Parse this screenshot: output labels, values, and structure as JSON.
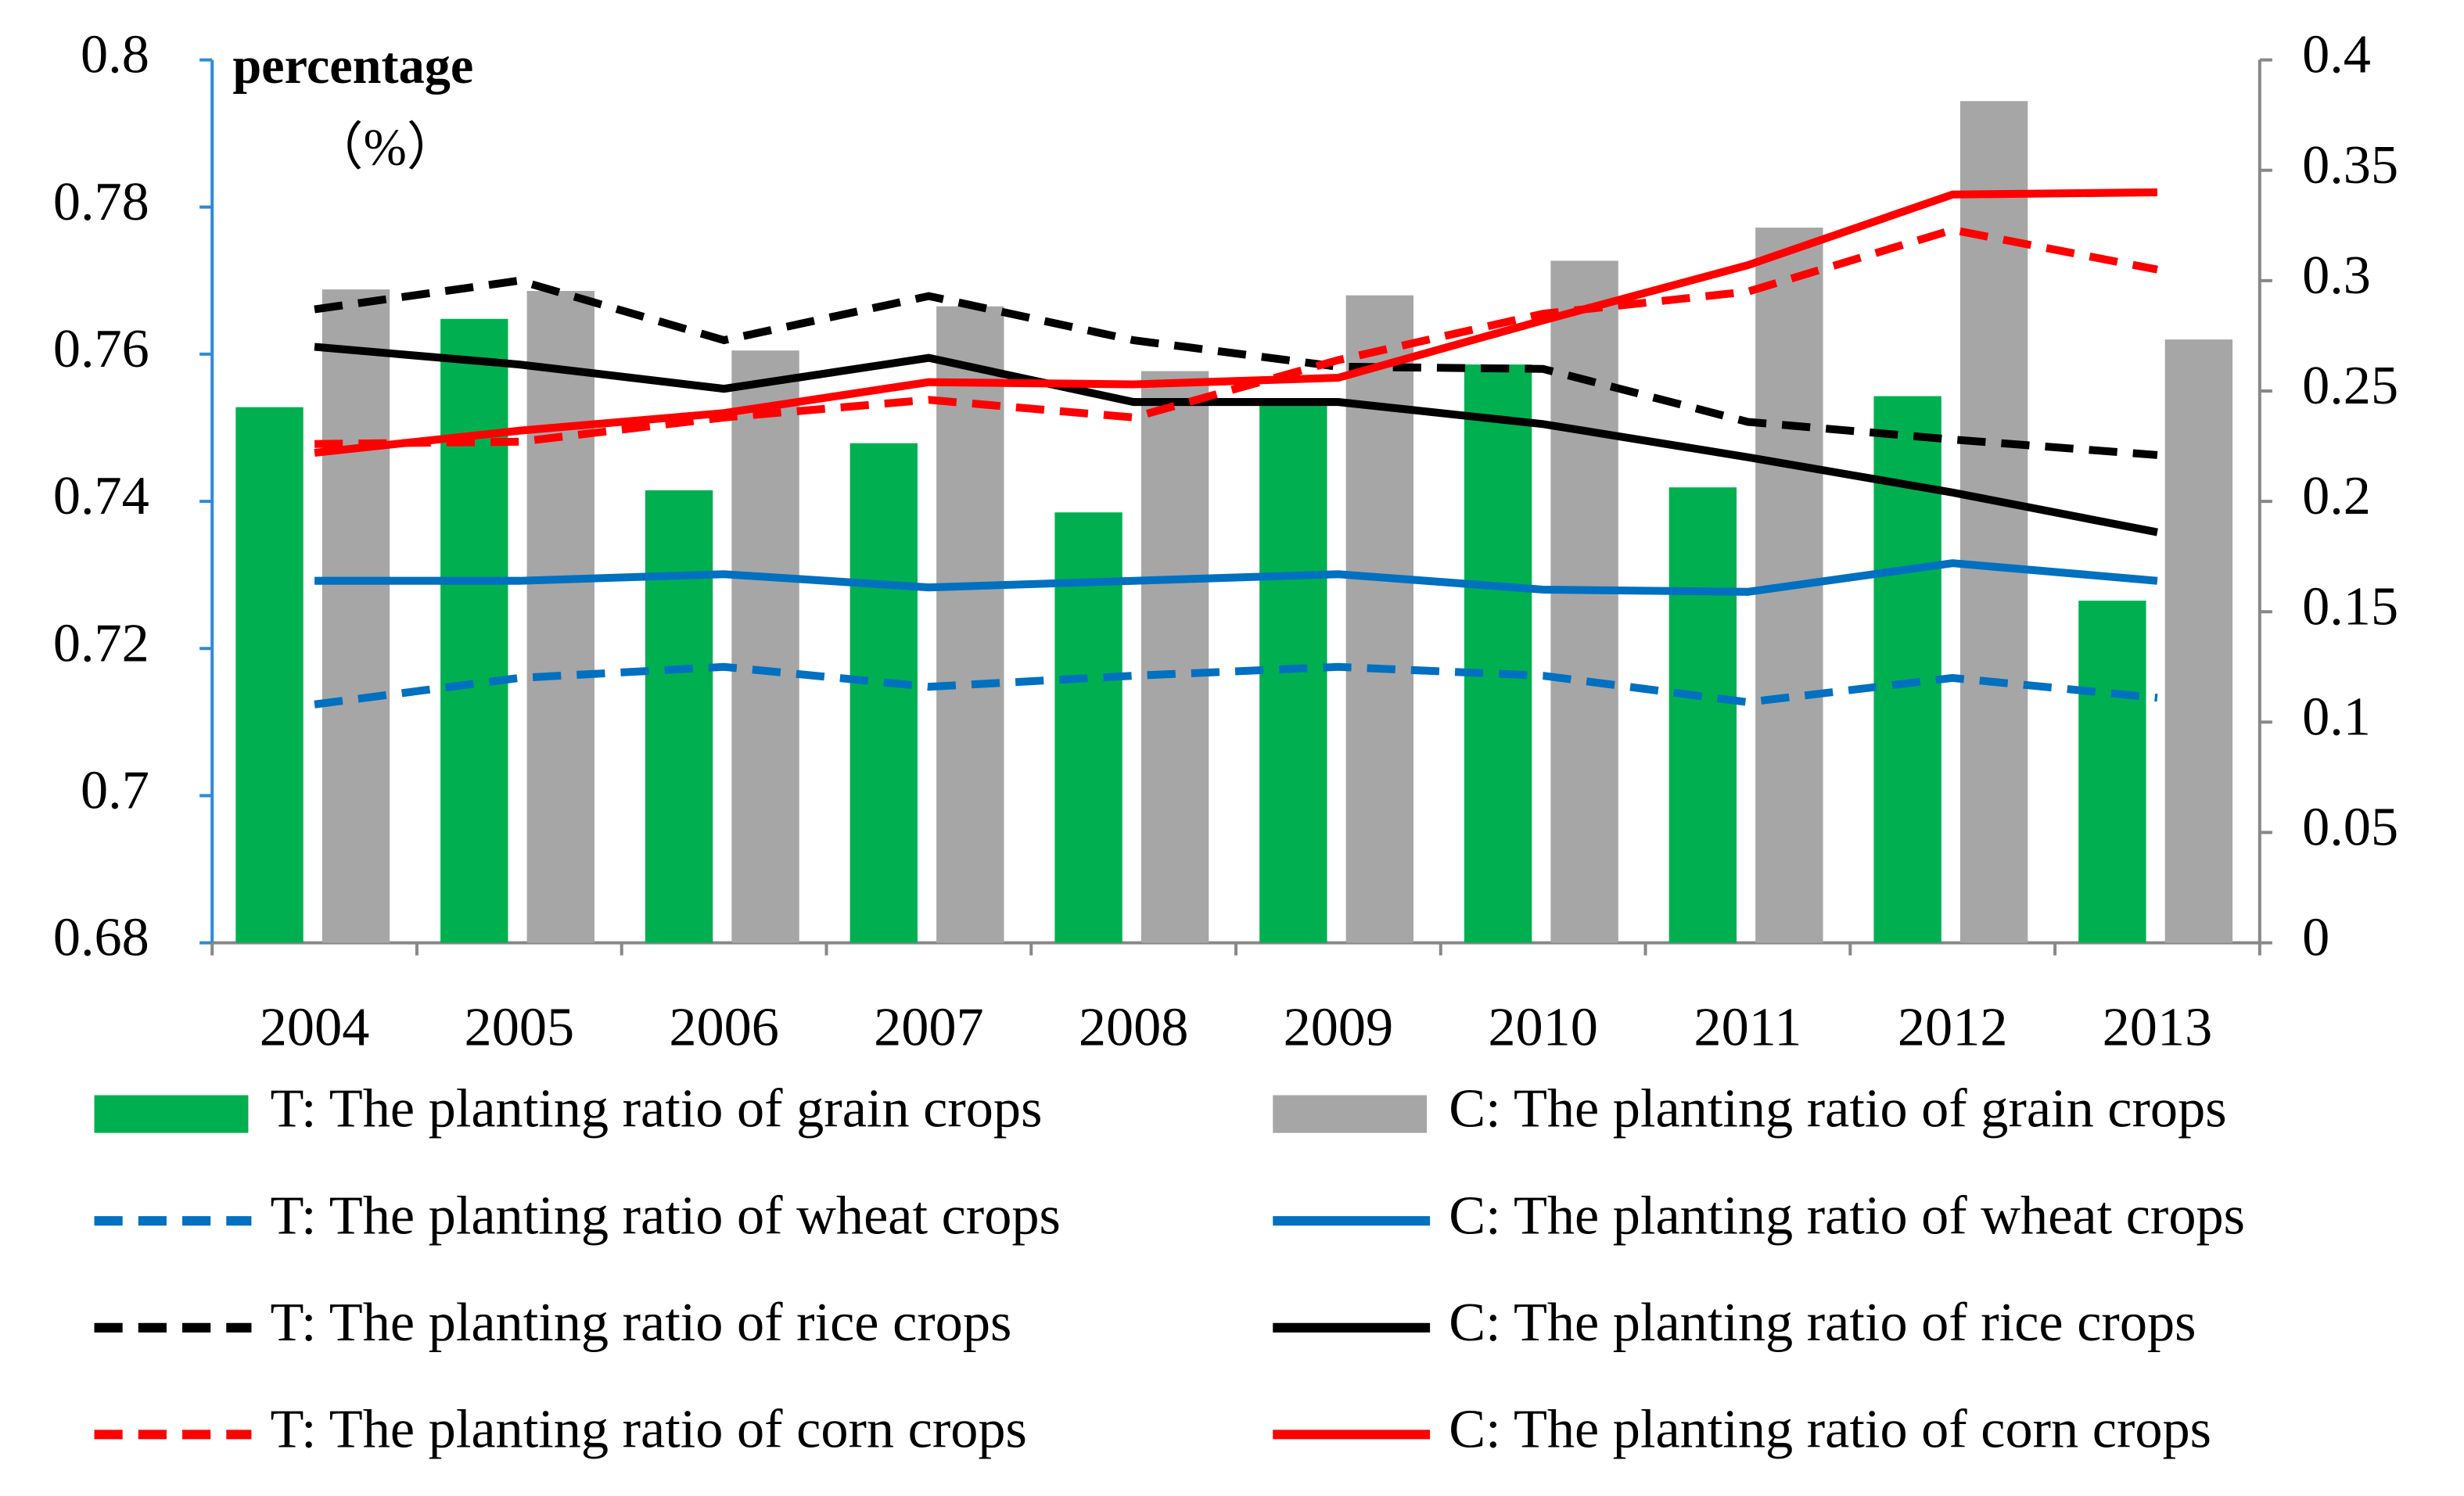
{
  "chart_data": {
    "type": "bar",
    "y_label": "percentage",
    "y_label_unit": "（%）",
    "categories": [
      "2004",
      "2005",
      "2006",
      "2007",
      "2008",
      "2009",
      "2010",
      "2011",
      "2012",
      "2013"
    ],
    "ylim": [
      0.68,
      0.8
    ],
    "yticks": [
      0.68,
      0.7,
      0.72,
      0.74,
      0.76,
      0.78,
      0.8
    ],
    "y2lim": [
      0,
      0.4
    ],
    "y2ticks": [
      0,
      0.05,
      0.1,
      0.15,
      0.2,
      0.25,
      0.3,
      0.35,
      0.4
    ],
    "series": [
      {
        "name": "T: The planting ratio of grain crops",
        "type": "bar",
        "color": "#00b050",
        "values": [
          0.7528,
          0.7648,
          0.7415,
          0.7479,
          0.7385,
          0.7535,
          0.7586,
          0.7419,
          0.7543,
          0.7265
        ]
      },
      {
        "name": "C: The planting ratio of grain crops",
        "type": "bar",
        "color": "#a6a6a6",
        "values": [
          0.7688,
          0.7686,
          0.7605,
          0.7665,
          0.7577,
          0.768,
          0.7727,
          0.7772,
          0.7944,
          0.762
        ]
      },
      {
        "name": "T: The planting ratio of wheat crops",
        "type": "line",
        "dashed": true,
        "axis": "y2",
        "color": "#0070c0",
        "values": [
          0.108,
          0.12,
          0.125,
          0.116,
          0.121,
          0.125,
          0.121,
          0.109,
          0.12,
          0.111
        ]
      },
      {
        "name": "C: The planting ratio of wheat crops",
        "type": "line",
        "dashed": false,
        "axis": "y2",
        "color": "#0070c0",
        "values": [
          0.164,
          0.164,
          0.167,
          0.161,
          0.164,
          0.167,
          0.16,
          0.159,
          0.172,
          0.164
        ]
      },
      {
        "name": "T: The planting ratio of rice crops",
        "type": "line",
        "dashed": true,
        "axis": "y2",
        "color": "#000000",
        "values": [
          0.287,
          0.3,
          0.273,
          0.293,
          0.273,
          0.261,
          0.26,
          0.236,
          0.228,
          0.221
        ]
      },
      {
        "name": "C: The planting ratio of rice crops",
        "type": "line",
        "dashed": false,
        "axis": "y2",
        "color": "#000000",
        "values": [
          0.27,
          0.262,
          0.251,
          0.265,
          0.245,
          0.245,
          0.235,
          0.22,
          0.204,
          0.186
        ]
      },
      {
        "name": "T: The planting ratio of corn crops",
        "type": "line",
        "dashed": true,
        "axis": "y2",
        "color": "#ff0000",
        "values": [
          0.226,
          0.227,
          0.238,
          0.246,
          0.238,
          0.264,
          0.285,
          0.295,
          0.323,
          0.305
        ]
      },
      {
        "name": "C: The planting ratio of corn crops",
        "type": "line",
        "dashed": false,
        "axis": "y2",
        "color": "#ff0000",
        "values": [
          0.222,
          0.232,
          0.24,
          0.254,
          0.253,
          0.256,
          0.282,
          0.307,
          0.339,
          0.34
        ]
      }
    ]
  }
}
